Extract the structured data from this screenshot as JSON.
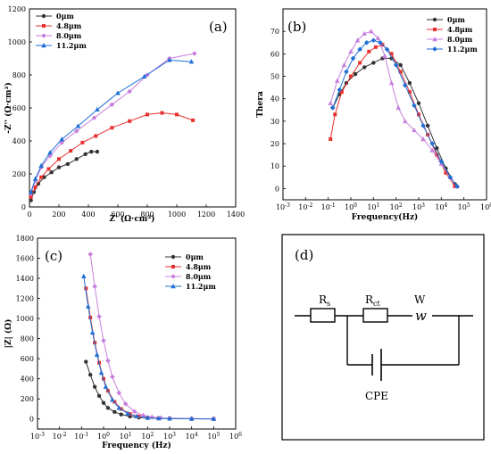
{
  "panels": {
    "a": "(a)",
    "b": "(b)",
    "c": "(c)",
    "d": "(d)"
  },
  "colors": {
    "0um": "#333333",
    "4.8um": "#e8312f",
    "8.0um": "#c77fdc",
    "11.2um": "#1f6fd6"
  },
  "chart_data": [
    {
      "id": "a",
      "type": "line",
      "xlabel": "Z' (Ω·cm²)",
      "ylabel": "-Z'' (Ω·cm²)",
      "xlim": [
        0,
        1400
      ],
      "ylim": [
        0,
        1200
      ],
      "xticks": [
        "0",
        "200",
        "400",
        "600",
        "800",
        "1000",
        "1200",
        "1400"
      ],
      "yticks": [
        "0",
        "200",
        "400",
        "600",
        "800",
        "1000",
        "1200"
      ],
      "legend_position": "top-left",
      "series": [
        {
          "name": "0μm",
          "marker": "circle",
          "x": [
            10,
            30,
            60,
            100,
            150,
            200,
            260,
            320,
            380,
            420,
            460
          ],
          "y": [
            40,
            90,
            140,
            180,
            210,
            240,
            260,
            290,
            320,
            335,
            335
          ]
        },
        {
          "name": "4.8μm",
          "marker": "square",
          "x": [
            10,
            40,
            80,
            130,
            200,
            280,
            360,
            450,
            560,
            680,
            800,
            900,
            1000,
            1110
          ],
          "y": [
            60,
            120,
            180,
            230,
            290,
            340,
            390,
            430,
            480,
            520,
            560,
            570,
            560,
            525
          ]
        },
        {
          "name": "8.0μm",
          "marker": "diamond",
          "x": [
            10,
            40,
            80,
            140,
            220,
            320,
            440,
            560,
            680,
            800,
            950,
            1120
          ],
          "y": [
            80,
            160,
            240,
            310,
            390,
            460,
            540,
            620,
            700,
            800,
            900,
            930
          ]
        },
        {
          "name": "11.2μm",
          "marker": "triangle",
          "x": [
            10,
            40,
            80,
            140,
            220,
            330,
            460,
            600,
            780,
            950,
            1100
          ],
          "y": [
            90,
            170,
            250,
            330,
            410,
            490,
            590,
            690,
            790,
            890,
            880
          ]
        }
      ]
    },
    {
      "id": "b",
      "type": "line",
      "xlabel": "Frequency(Hz)",
      "ylabel": "Thera",
      "xscale": "log",
      "xlim": [
        0.001,
        1000000
      ],
      "ylim": [
        -5,
        80
      ],
      "xticks": [
        "10-3",
        "10-2",
        "10-1",
        "100",
        "101",
        "102",
        "103",
        "104",
        "105",
        "106"
      ],
      "yticks": [
        "0",
        "10",
        "20",
        "30",
        "40",
        "50",
        "60",
        "70"
      ],
      "legend_position": "top-right",
      "series": [
        {
          "name": "0μm",
          "marker": "circle",
          "logf": [
            -0.8,
            -0.5,
            -0.2,
            0.2,
            0.6,
            1.0,
            1.4,
            1.8,
            2.2,
            2.6,
            3.0,
            3.4,
            3.8,
            4.2,
            4.6
          ],
          "y": [
            36,
            42,
            47,
            51,
            54,
            56,
            58,
            58,
            55,
            47,
            38,
            28,
            18,
            9,
            2
          ]
        },
        {
          "name": "4.8μm",
          "marker": "square",
          "logf": [
            -0.9,
            -0.7,
            -0.4,
            0,
            0.4,
            0.8,
            1.1,
            1.4,
            1.8,
            2.2,
            2.6,
            3.0,
            3.4,
            3.8,
            4.2,
            4.6
          ],
          "y": [
            22,
            33,
            43,
            50,
            56,
            61,
            63,
            64,
            60,
            52,
            43,
            33,
            24,
            15,
            7,
            1
          ]
        },
        {
          "name": "8.0μm",
          "marker": "triangle",
          "logf": [
            -0.9,
            -0.6,
            -0.3,
            0,
            0.3,
            0.6,
            0.9,
            1.2,
            1.5,
            1.8,
            2.1,
            2.4,
            2.8,
            3.2,
            3.6,
            4.0,
            4.4,
            4.7
          ],
          "y": [
            38,
            48,
            55,
            61,
            66,
            69,
            70,
            67,
            59,
            47,
            36,
            30,
            26,
            22,
            17,
            11,
            5,
            1
          ]
        },
        {
          "name": "11.2μm",
          "marker": "diamond",
          "logf": [
            -0.8,
            -0.5,
            -0.2,
            0.1,
            0.4,
            0.7,
            1.0,
            1.3,
            1.6,
            2.0,
            2.4,
            2.8,
            3.2,
            3.6,
            4.0,
            4.4,
            4.7
          ],
          "y": [
            36,
            44,
            52,
            58,
            62,
            65,
            66,
            65,
            62,
            55,
            46,
            37,
            28,
            20,
            12,
            5,
            1
          ]
        }
      ]
    },
    {
      "id": "c",
      "type": "line",
      "xlabel": "Frequency (Hz)",
      "ylabel": "|Z| (Ω)",
      "xscale": "log",
      "xlim": [
        0.001,
        1000000
      ],
      "ylim": [
        -100,
        1800
      ],
      "xticks": [
        "10-3",
        "10-2",
        "10-1",
        "100",
        "101",
        "102",
        "103",
        "104",
        "105",
        "106"
      ],
      "yticks": [
        "0",
        "200",
        "400",
        "600",
        "800",
        "1000",
        "1200",
        "1400",
        "1600",
        "1800"
      ],
      "legend_position": "top-right",
      "series": [
        {
          "name": "0μm",
          "marker": "circle",
          "logf": [
            -0.8,
            -0.6,
            -0.4,
            -0.2,
            0,
            0.2,
            0.5,
            0.8,
            1.2,
            1.6,
            2.0,
            2.5,
            3.0,
            4.0,
            5.0
          ],
          "y": [
            570,
            440,
            320,
            230,
            160,
            110,
            70,
            45,
            25,
            15,
            10,
            6,
            4,
            2,
            1
          ]
        },
        {
          "name": "4.8μm",
          "marker": "square",
          "logf": [
            -0.8,
            -0.6,
            -0.4,
            -0.2,
            0,
            0.2,
            0.5,
            0.8,
            1.2,
            1.6,
            2.0,
            2.5,
            3.0,
            4.0,
            5.0
          ],
          "y": [
            1300,
            1010,
            760,
            560,
            400,
            280,
            170,
            100,
            50,
            25,
            14,
            8,
            5,
            2,
            1
          ]
        },
        {
          "name": "8.0μm",
          "marker": "diamond",
          "logf": [
            -0.6,
            -0.4,
            -0.2,
            0,
            0.2,
            0.4,
            0.7,
            1.0,
            1.4,
            1.8,
            2.2,
            2.6,
            3.0,
            4.0,
            5.0
          ],
          "y": [
            1640,
            1320,
            1020,
            780,
            580,
            420,
            260,
            150,
            75,
            35,
            18,
            10,
            6,
            3,
            2
          ]
        },
        {
          "name": "11.2μm",
          "marker": "triangle",
          "logf": [
            -0.9,
            -0.7,
            -0.5,
            -0.3,
            -0.1,
            0.1,
            0.4,
            0.7,
            1.1,
            1.5,
            2.0,
            2.5,
            3.0,
            4.0,
            5.0
          ],
          "y": [
            1420,
            1120,
            860,
            640,
            460,
            320,
            190,
            110,
            55,
            27,
            12,
            7,
            4,
            2,
            1
          ]
        }
      ]
    }
  ],
  "circuit": {
    "labels": {
      "rs": "R",
      "rs_sub": "s",
      "rct": "R",
      "rct_sub": "ct",
      "w": "W",
      "w_glyph": "w",
      "cpe": "CPE"
    }
  }
}
